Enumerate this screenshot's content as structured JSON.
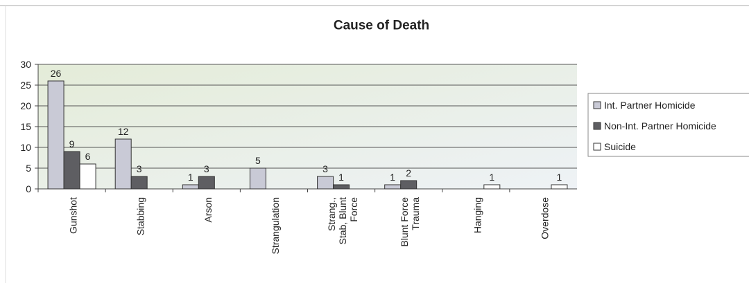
{
  "chart_data": {
    "type": "bar",
    "title": "Cause of Death",
    "categories": [
      "Gunshot",
      "Stabbing",
      "Arson",
      "Strangulation",
      "Strang., Stab, Blunt Force",
      "Blunt Force Trauma",
      "Hanging",
      "Overdose"
    ],
    "series": [
      {
        "name": "Int. Partner Homicide",
        "color": "#c9cad6",
        "values": [
          26,
          12,
          1,
          5,
          3,
          1,
          null,
          null
        ]
      },
      {
        "name": "Non-Int. Partner Homicide",
        "color": "#5e5e62",
        "values": [
          9,
          3,
          3,
          null,
          1,
          2,
          null,
          null
        ]
      },
      {
        "name": "Suicide",
        "color": "#ffffff",
        "values": [
          6,
          null,
          null,
          null,
          null,
          null,
          1,
          1
        ]
      }
    ],
    "ylim": [
      0,
      30
    ],
    "yticks": [
      0,
      5,
      10,
      15,
      20,
      25,
      30
    ],
    "grid": true,
    "legend": "right"
  }
}
